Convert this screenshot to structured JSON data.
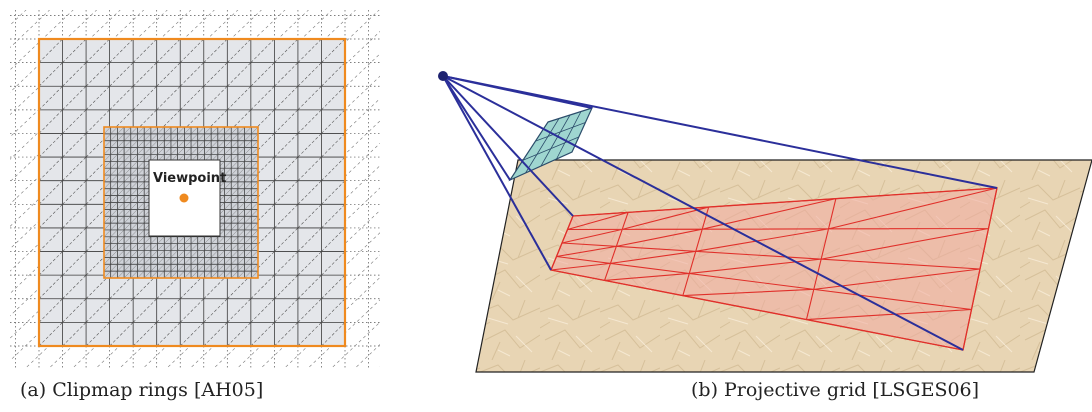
{
  "figure_a": {
    "viewpoint_label": "Viewpoint",
    "caption": "(a) Clipmap rings [AH05]",
    "colors": {
      "ring_border": "#ef8a1f",
      "viewpoint_dot": "#ef8a1f",
      "cell_fill": "#e4e6ea",
      "grid_line": "#3a3a3a"
    }
  },
  "figure_b": {
    "caption": "(b) Projective grid [LSGES06]",
    "colors": {
      "ray": "#2b2f9a",
      "projected_grid": "#e0302a",
      "projected_fill": "#f0aaa0",
      "terrain": "#e9d7b8",
      "screen_grid": "#9fd6d0"
    }
  }
}
